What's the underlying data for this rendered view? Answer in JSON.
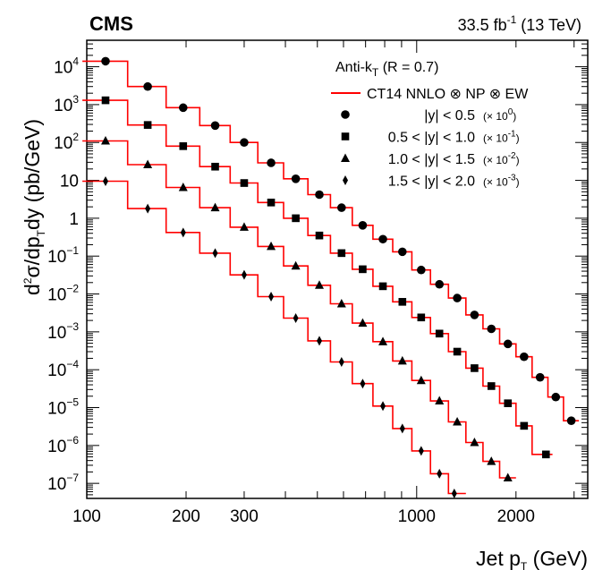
{
  "header": {
    "experiment": "CMS",
    "luminosity": "33.5 fb",
    "lumi_exp": "-1",
    "energy": "(13 TeV)"
  },
  "axes": {
    "x_title": "Jet p",
    "x_title_sub": "T",
    "x_title_unit": "(GeV)",
    "y_title_prefix": "d",
    "y_title_exp": "2",
    "y_title_mid": "σ/dp",
    "y_title_sub": "T",
    "y_title_end": "dy",
    "y_title_unit": "(pb/GeV)",
    "x_tick_labels": [
      {
        "value": 100,
        "label": "100"
      },
      {
        "value": 200,
        "label": "200"
      },
      {
        "value": 300,
        "label": "300"
      },
      {
        "value": 1000,
        "label": "1000"
      },
      {
        "value": 2000,
        "label": "2000"
      }
    ],
    "y_tick_labels": [
      {
        "exp": 4,
        "text": "10",
        "sup": "4"
      },
      {
        "exp": 3,
        "text": "10",
        "sup": "3"
      },
      {
        "exp": 2,
        "text": "10",
        "sup": "2"
      },
      {
        "exp": 1,
        "text": "10",
        "sup": ""
      },
      {
        "exp": 0,
        "text": "1",
        "sup": ""
      },
      {
        "exp": -1,
        "text": "10",
        "sup": "−1"
      },
      {
        "exp": -2,
        "text": "10",
        "sup": "−2"
      },
      {
        "exp": -3,
        "text": "10",
        "sup": "−3"
      },
      {
        "exp": -4,
        "text": "10",
        "sup": "−4"
      },
      {
        "exp": -5,
        "text": "10",
        "sup": "−5"
      },
      {
        "exp": -6,
        "text": "10",
        "sup": "−6"
      },
      {
        "exp": -7,
        "text": "10",
        "sup": "−7"
      }
    ]
  },
  "legend": {
    "algo_prefix": "Anti-k",
    "algo_sub": "T",
    "algo_suffix": "(R = 0.7)",
    "theory_label": "CT14 NNLO ⊗ NP ⊗ EW",
    "entries": [
      {
        "marker": "circle",
        "label": "|y| < 0.5",
        "scale_text": "(× 10",
        "scale_exp": "0",
        "scale_close": ")"
      },
      {
        "marker": "square",
        "label": "0.5 < |y| < 1.0",
        "scale_text": "(× 10",
        "scale_exp": "-1",
        "scale_close": ")"
      },
      {
        "marker": "triangle",
        "label": "1.0 < |y| < 1.5",
        "scale_text": "(× 10",
        "scale_exp": "-2",
        "scale_close": ")"
      },
      {
        "marker": "diamond",
        "label": "1.5 < |y| < 2.0",
        "scale_text": "(× 10",
        "scale_exp": "-3",
        "scale_close": ")"
      }
    ]
  },
  "colors": {
    "theory_line": "#ff0000",
    "markers": "#000000"
  },
  "chart_data": {
    "type": "scatter",
    "title": "",
    "xlabel": "Jet pT (GeV)",
    "ylabel": "d2σ/dpT dy (pb/GeV)",
    "xscale": "log",
    "yscale": "log",
    "xlim": [
      100,
      3300
    ],
    "ylim": [
      4e-08,
      50000
    ],
    "legend_position": "top-right",
    "series": [
      {
        "name": "|y| < 0.5 (×10^0)",
        "marker": "circle",
        "points": [
          [
            114,
            14000
          ],
          [
            153,
            3000
          ],
          [
            196,
            830
          ],
          [
            245,
            280
          ],
          [
            300,
            100
          ],
          [
            362,
            29
          ],
          [
            430,
            11
          ],
          [
            507,
            4.2
          ],
          [
            592,
            1.9
          ],
          [
            686,
            0.65
          ],
          [
            790,
            0.28
          ],
          [
            905,
            0.13
          ],
          [
            1032,
            0.043
          ],
          [
            1172,
            0.018
          ],
          [
            1327,
            0.0078
          ],
          [
            1497,
            0.0028
          ],
          [
            1684,
            0.0012
          ],
          [
            1890,
            0.00048
          ],
          [
            2116,
            0.00022
          ],
          [
            2366,
            6.3e-05
          ],
          [
            2640,
            1.9e-05
          ],
          [
            2942,
            4.5e-06
          ]
        ],
        "theory_edges": [
          97,
          133,
          174,
          220,
          272,
          330,
          395,
          468,
          548,
          638,
          737,
          846,
          967,
          1101,
          1248,
          1410,
          1588,
          1784,
          2000,
          2238,
          2500,
          2787,
          3103
        ],
        "theory_values": [
          14000,
          3000,
          830,
          280,
          100,
          29,
          11,
          4.2,
          1.9,
          0.65,
          0.28,
          0.13,
          0.043,
          0.018,
          0.0078,
          0.0028,
          0.0012,
          0.00048,
          0.00022,
          6.3e-05,
          1.9e-05,
          4.5e-06
        ]
      },
      {
        "name": "0.5 < |y| < 1.0 (×10^-1)",
        "marker": "square",
        "points": [
          [
            114,
            1300
          ],
          [
            153,
            290
          ],
          [
            196,
            80
          ],
          [
            245,
            23
          ],
          [
            300,
            8.5
          ],
          [
            362,
            2.6
          ],
          [
            430,
            1.0
          ],
          [
            507,
            0.35
          ],
          [
            592,
            0.12
          ],
          [
            686,
            0.045
          ],
          [
            790,
            0.016
          ],
          [
            905,
            0.0062
          ],
          [
            1032,
            0.0024
          ],
          [
            1172,
            0.0009
          ],
          [
            1327,
            0.0003
          ],
          [
            1497,
            0.00011
          ],
          [
            1684,
            3.7e-05
          ],
          [
            1890,
            1.3e-05
          ],
          [
            2116,
            3.3e-06
          ],
          [
            2465,
            5.8e-07
          ]
        ],
        "theory_edges": [
          97,
          133,
          174,
          220,
          272,
          330,
          395,
          468,
          548,
          638,
          737,
          846,
          967,
          1101,
          1248,
          1410,
          1588,
          1784,
          2000,
          2238,
          2580
        ],
        "theory_values": [
          1300,
          290,
          80,
          23,
          8.5,
          2.6,
          1.0,
          0.35,
          0.12,
          0.045,
          0.016,
          0.0062,
          0.0024,
          0.0009,
          0.0003,
          0.00011,
          3.7e-05,
          1.3e-05,
          3.3e-06,
          5.8e-07
        ]
      },
      {
        "name": "1.0 < |y| < 1.5 (×10^-2)",
        "marker": "triangle",
        "points": [
          [
            114,
            110
          ],
          [
            153,
            26
          ],
          [
            196,
            6.5
          ],
          [
            245,
            1.9
          ],
          [
            300,
            0.58
          ],
          [
            362,
            0.18
          ],
          [
            430,
            0.055
          ],
          [
            507,
            0.017
          ],
          [
            592,
            0.0055
          ],
          [
            686,
            0.0017
          ],
          [
            790,
            0.00055
          ],
          [
            905,
            0.00017
          ],
          [
            1032,
            5.2e-05
          ],
          [
            1172,
            1.5e-05
          ],
          [
            1327,
            4.2e-06
          ],
          [
            1497,
            1.2e-06
          ],
          [
            1684,
            3.8e-07
          ],
          [
            1890,
            1.4e-07
          ]
        ],
        "theory_edges": [
          97,
          133,
          174,
          220,
          272,
          330,
          395,
          468,
          548,
          638,
          737,
          846,
          967,
          1101,
          1248,
          1410,
          1588,
          1784,
          2000
        ],
        "theory_values": [
          110,
          26,
          6.5,
          1.9,
          0.58,
          0.18,
          0.055,
          0.017,
          0.0055,
          0.0017,
          0.00055,
          0.00017,
          5.2e-05,
          1.5e-05,
          4.2e-06,
          1.2e-06,
          3.8e-07,
          1.4e-07
        ]
      },
      {
        "name": "1.5 < |y| < 2.0 (×10^-3)",
        "marker": "diamond",
        "points": [
          [
            114,
            9.5
          ],
          [
            153,
            1.8
          ],
          [
            196,
            0.42
          ],
          [
            245,
            0.12
          ],
          [
            300,
            0.032
          ],
          [
            362,
            0.0085
          ],
          [
            430,
            0.0023
          ],
          [
            507,
            0.00058
          ],
          [
            592,
            0.00016
          ],
          [
            686,
            4.3e-05
          ],
          [
            790,
            1.1e-05
          ],
          [
            905,
            2.8e-06
          ],
          [
            1032,
            7.2e-07
          ],
          [
            1172,
            1.8e-07
          ],
          [
            1300,
            5.4e-08
          ]
        ],
        "theory_edges": [
          97,
          133,
          174,
          220,
          272,
          330,
          395,
          468,
          548,
          638,
          737,
          846,
          967,
          1101,
          1248,
          1410
        ],
        "theory_values": [
          9.5,
          1.8,
          0.42,
          0.12,
          0.032,
          0.0085,
          0.0023,
          0.00058,
          0.00016,
          4.3e-05,
          1.1e-05,
          2.8e-06,
          7.2e-07,
          1.8e-07,
          5.4e-08
        ]
      }
    ]
  }
}
